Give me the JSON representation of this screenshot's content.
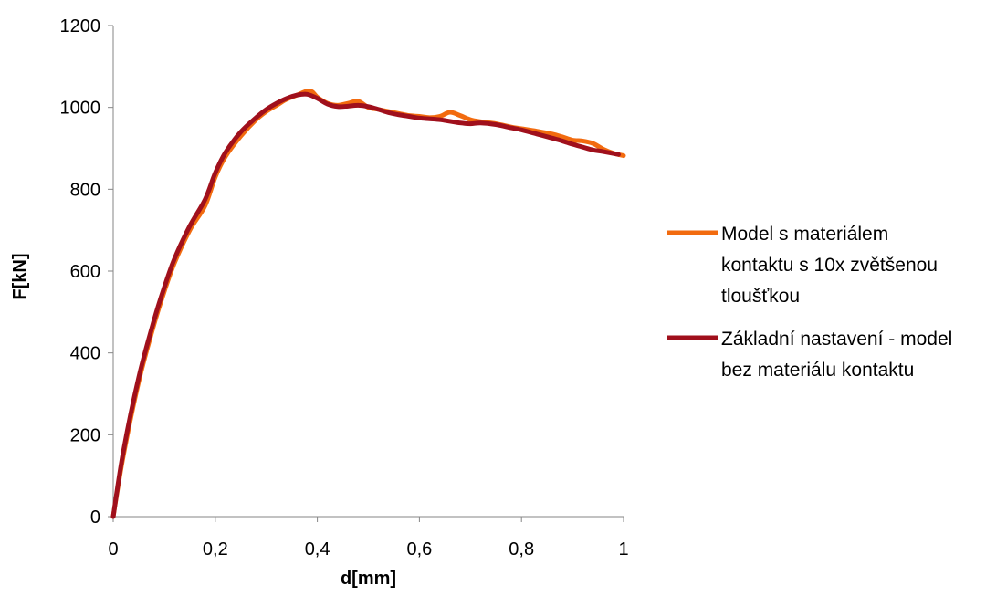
{
  "chart_data": {
    "type": "line",
    "title": "",
    "xlabel": "d[mm]",
    "ylabel": "F[kN]",
    "xlim": [
      0,
      1
    ],
    "ylim": [
      0,
      1200
    ],
    "x_ticks": [
      0,
      0.2,
      0.4,
      0.6,
      0.8,
      1
    ],
    "x_tick_labels": [
      "0",
      "0,2",
      "0,4",
      "0,6",
      "0,8",
      "1"
    ],
    "y_ticks": [
      0,
      200,
      400,
      600,
      800,
      1000,
      1200
    ],
    "y_tick_labels": [
      "0",
      "200",
      "400",
      "600",
      "800",
      "1000",
      "1200"
    ],
    "grid": false,
    "legend_position": "right",
    "series": [
      {
        "name": "Model s materiálem kontaktu s 10x zvětšenou tloušťkou",
        "legend_lines": [
          "Model s materiálem",
          "kontaktu s 10x zvětšenou",
          "tloušťkou"
        ],
        "color": "#f26b0f",
        "x": [
          0,
          0.02,
          0.05,
          0.08,
          0.1,
          0.12,
          0.15,
          0.18,
          0.2,
          0.22,
          0.25,
          0.28,
          0.3,
          0.32,
          0.34,
          0.36,
          0.38,
          0.39,
          0.4,
          0.42,
          0.44,
          0.46,
          0.48,
          0.5,
          0.52,
          0.54,
          0.56,
          0.58,
          0.6,
          0.62,
          0.64,
          0.66,
          0.68,
          0.7,
          0.72,
          0.75,
          0.78,
          0.8,
          0.83,
          0.86,
          0.88,
          0.9,
          0.92,
          0.94,
          0.96,
          0.98,
          1.0
        ],
        "y": [
          0,
          150,
          330,
          470,
          550,
          620,
          700,
          760,
          830,
          880,
          930,
          970,
          990,
          1005,
          1020,
          1030,
          1040,
          1038,
          1025,
          1010,
          1005,
          1010,
          1015,
          1000,
          995,
          990,
          985,
          980,
          978,
          975,
          978,
          988,
          980,
          970,
          965,
          960,
          952,
          948,
          942,
          935,
          928,
          920,
          918,
          912,
          898,
          888,
          882
        ]
      },
      {
        "name": "Základní nastavení - model bez materiálu kontaktu",
        "legend_lines": [
          "Základní nastavení - model",
          "bez materiálu kontaktu"
        ],
        "color": "#a0101c",
        "x": [
          0,
          0.02,
          0.05,
          0.08,
          0.1,
          0.12,
          0.15,
          0.18,
          0.2,
          0.22,
          0.25,
          0.28,
          0.3,
          0.32,
          0.34,
          0.36,
          0.38,
          0.4,
          0.42,
          0.44,
          0.46,
          0.48,
          0.5,
          0.52,
          0.54,
          0.56,
          0.58,
          0.6,
          0.62,
          0.64,
          0.66,
          0.68,
          0.7,
          0.72,
          0.75,
          0.78,
          0.8,
          0.83,
          0.86,
          0.88,
          0.9,
          0.92,
          0.94,
          0.96,
          0.99
        ],
        "y": [
          0,
          160,
          340,
          480,
          560,
          630,
          710,
          775,
          840,
          890,
          940,
          975,
          995,
          1010,
          1022,
          1030,
          1032,
          1022,
          1008,
          1002,
          1003,
          1005,
          1002,
          995,
          987,
          982,
          978,
          974,
          972,
          970,
          966,
          962,
          960,
          962,
          958,
          950,
          945,
          935,
          925,
          918,
          910,
          903,
          896,
          892,
          885
        ]
      }
    ]
  }
}
